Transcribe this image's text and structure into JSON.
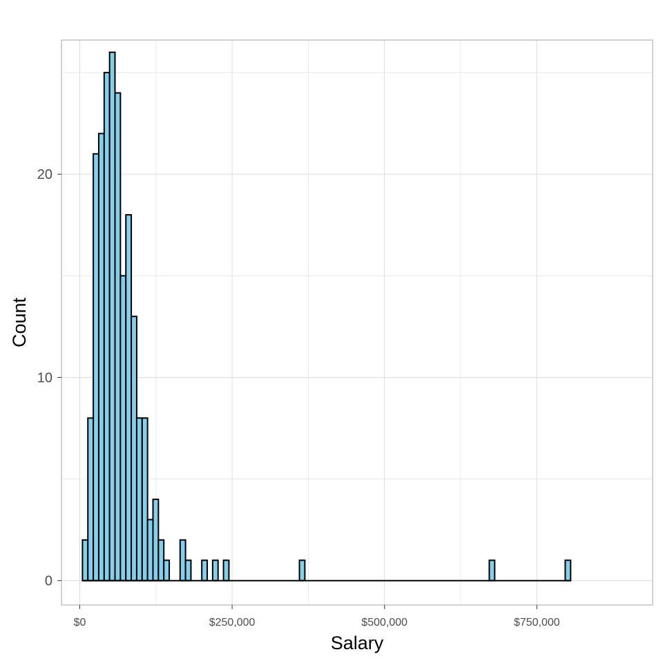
{
  "chart_data": {
    "type": "histogram",
    "xlabel": "Salary",
    "ylabel": "Count",
    "bin_width": 8900,
    "bin_start": 4450,
    "xlim": [
      -30000,
      940000
    ],
    "ylim": [
      -1.2,
      26.6
    ],
    "x_ticks": [
      0,
      250000,
      500000,
      750000
    ],
    "x_tick_labels": [
      "$0",
      "$250,000",
      "$500,000",
      "$750,000"
    ],
    "y_ticks": [
      0,
      10,
      20
    ],
    "y_tick_labels": [
      "0",
      "10",
      "20"
    ],
    "counts": [
      2,
      8,
      21,
      22,
      25,
      26,
      24,
      15,
      18,
      13,
      8,
      8,
      3,
      4,
      2,
      1,
      0,
      0,
      2,
      1,
      0,
      0,
      1,
      0,
      1,
      0,
      1,
      0,
      0,
      0,
      0,
      0,
      0,
      0,
      0,
      0,
      0,
      0,
      0,
      0,
      1,
      0,
      0,
      0,
      0,
      0,
      0,
      0,
      0,
      0,
      0,
      0,
      0,
      0,
      0,
      0,
      0,
      0,
      0,
      0,
      0,
      0,
      0,
      0,
      0,
      0,
      0,
      0,
      0,
      0,
      0,
      0,
      0,
      0,
      0,
      1,
      0,
      0,
      0,
      0,
      0,
      0,
      0,
      0,
      0,
      0,
      0,
      0,
      0,
      1
    ],
    "grid": true,
    "bar_fill": "#87ceeb",
    "bar_stroke": "#000000",
    "grid_color": "#dcdcdc",
    "panel_border_color": "#b3b3b3"
  }
}
